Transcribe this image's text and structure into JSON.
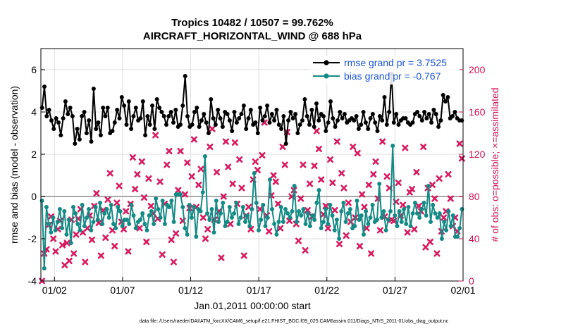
{
  "chart_data": {
    "type": "line",
    "title_line1": "Tropics 10482 / 10507 = 99.762%",
    "title_line2": "AIRCRAFT_HORIZONTAL_WIND @ 688 hPa",
    "xlabel": "Jan.01,2011 00:00:00 start",
    "ylabel_left": "rmse and bias (model - observation)",
    "ylabel_right": "# of obs: o=possible; ×=assimilated",
    "footnote": "data file: /Users/raeder/DAI/ATM_forcXX/CAM6_setup/f.e21.FHIST_BGC.f09_025.CAM6assim.011/Diags_NTrS_2011-01/obs_diag_output.nc",
    "xlim": [
      0,
      31
    ],
    "ylim_left": [
      -4,
      7
    ],
    "ylim_right": [
      0,
      220
    ],
    "x_ticks": [
      1,
      6,
      11,
      16,
      21,
      26,
      31
    ],
    "x_tick_labels": [
      "01/02",
      "01/07",
      "01/12",
      "01/17",
      "01/22",
      "01/27",
      "02/01"
    ],
    "y_ticks_left": [
      -4,
      -2,
      0,
      2,
      4,
      6
    ],
    "y_tick_labels_left": [
      "-4",
      "-2",
      "0",
      "2",
      "4",
      "6"
    ],
    "y_ticks_right": [
      0,
      40,
      80,
      120,
      160,
      200
    ],
    "y_tick_labels_right": [
      "0",
      "40",
      "80",
      "120",
      "160",
      "200"
    ],
    "series": [
      {
        "name": "rmse grand pr = 3.7525",
        "color": "#000000",
        "values": [
          4.2,
          5.2,
          3.8,
          4.1,
          3.6,
          3.2,
          3.7,
          3.5,
          2.9,
          3.7,
          4.5,
          3.9,
          4.2,
          3.8,
          2.5,
          3.2,
          2.7,
          3.8,
          4.0,
          3.0,
          3.6,
          2.6,
          5.1,
          3.2,
          3.5,
          2.9,
          4.2,
          3.8,
          4.2,
          3.0,
          3.1,
          3.5,
          4.1,
          3.7,
          4.7,
          4.3,
          3.4,
          4.5,
          3.2,
          3.8,
          4.2,
          3.6,
          3.7,
          4.5,
          2.9,
          3.8,
          3.4,
          4.3,
          3.2,
          4.6,
          4.2,
          4.0,
          3.8,
          3.4,
          3.8,
          4.0,
          3.5,
          4.1,
          3.3,
          3.4,
          4.3,
          5.7,
          3.8,
          3.3,
          3.4,
          4.0,
          4.2,
          3.3,
          3.6,
          3.9,
          3.5,
          3.0,
          4.6,
          3.7,
          3.4,
          4.1,
          3.7,
          3.3,
          4.0,
          3.9,
          3.6,
          3.1,
          4.0,
          3.5,
          3.7,
          3.9,
          4.3,
          3.2,
          3.7,
          4.1,
          3.4,
          3.5,
          3.0,
          4.2,
          3.6,
          3.8,
          4.3,
          3.5,
          3.9,
          3.6,
          4.1,
          3.4,
          3.2,
          3.8,
          2.5,
          3.6,
          4.0,
          3.7,
          3.9,
          3.0,
          3.4,
          3.6,
          4.6,
          3.8,
          3.4,
          4.1,
          3.3,
          4.4,
          3.6,
          3.9,
          3.8,
          3.1,
          3.5,
          4.5,
          3.7,
          3.3,
          3.6,
          4.0,
          3.7,
          3.9,
          3.5,
          3.6,
          3.7,
          3.6,
          3.8,
          3.2,
          3.4,
          4.0,
          3.5,
          3.2,
          3.7,
          3.9,
          3.5,
          3.1,
          3.8,
          3.6,
          4.7,
          3.4,
          4.0,
          5.8,
          3.5,
          3.9,
          3.4,
          3.6,
          3.7,
          3.7,
          3.5,
          3.4,
          3.5,
          3.9,
          4.0,
          3.8,
          3.6,
          4.0,
          3.7,
          3.9,
          3.5,
          4.1,
          3.9,
          3.3,
          3.6,
          4.8,
          4.5,
          4.7,
          3.7,
          3.8,
          4.0,
          3.7,
          3.6,
          3.6
        ]
      },
      {
        "name": "bias grand pr = -0.767",
        "color": "#138a84",
        "values": [
          -0.2,
          -3.4,
          -0.5,
          -1.3,
          -1.7,
          -1.0,
          -1.6,
          -1.2,
          -0.6,
          -1.5,
          -0.7,
          -1.8,
          -1.1,
          -2.2,
          -0.5,
          -0.8,
          -1.3,
          -1.6,
          -0.4,
          -1.4,
          -1.0,
          -0.6,
          -1.6,
          -1.2,
          -0.5,
          -1.1,
          -0.3,
          -1.3,
          -0.8,
          -0.6,
          -1.0,
          -0.4,
          -1.3,
          -1.5,
          -0.5,
          -0.7,
          -1.4,
          -1.1,
          -1.1,
          -1.3,
          -0.4,
          -0.9,
          -1.5,
          -1.2,
          -1.1,
          -0.8,
          -1.3,
          -1.6,
          -0.9,
          -0.7,
          -1.3,
          -0.1,
          -0.6,
          -1.0,
          -0.2,
          -1.3,
          -0.4,
          -0.5,
          -0.2,
          -1.2,
          0.1,
          0.1,
          0.1,
          -0.5,
          -1.5,
          -1.8,
          -0.4,
          -1.0,
          -0.5,
          -1.9,
          -0.6,
          -0.7,
          0.2,
          1.9,
          -0.8,
          -1.1,
          -0.6,
          -1.7,
          -0.2,
          -1.2,
          -0.8,
          -0.3,
          -1.4,
          -1.2,
          -0.5,
          -1.0,
          -0.8,
          -0.3,
          -1.3,
          -1.0,
          -0.5,
          -1.2,
          -0.9,
          -1.4,
          -0.6,
          1.1,
          -0.3,
          -1.6,
          -1.1,
          -0.4,
          -1.4,
          -1.0,
          0.8,
          -0.6,
          -1.3,
          -1.8,
          -1.2,
          -0.5,
          -1.2,
          -0.6,
          -0.8,
          -1.0,
          -0.7,
          0.5,
          -1.2,
          -0.7,
          -0.9,
          -0.6,
          -1.3,
          -0.8,
          -1.4,
          -0.9,
          -1.1,
          -0.3,
          0.3,
          -1.5,
          -1.2,
          -0.6,
          -1.3,
          -0.4,
          -0.9,
          -1.6,
          -1.1,
          -2.0,
          -0.7,
          -0.3,
          -1.2,
          -0.8,
          -0.6,
          -1.5,
          -1.4,
          -0.2,
          -1.1,
          -0.9,
          -1.8,
          -0.7,
          -1.3,
          -1.0,
          -0.4,
          -1.2,
          -1.1,
          0.6,
          -1.0,
          -0.7,
          -1.6,
          -1.1,
          -0.7,
          2.4,
          -0.9,
          -1.4,
          -0.7,
          -1.2,
          -0.6,
          -1.3,
          -0.5,
          -1.4,
          -0.8,
          -0.3,
          -0.8,
          -1.0,
          -0.6,
          -0.3,
          -0.9,
          0.5,
          -1.2,
          -0.4,
          -0.8,
          -1.0,
          -0.8,
          -2.0,
          -1.2,
          -1.6,
          -0.7,
          -1.4,
          -0.9,
          -1.9,
          -1.9,
          -1.5,
          -0.6
        ]
      }
    ],
    "obs_count_axis": "right",
    "obs_possible_label": "possible",
    "obs_assimilated_label": "assimilated",
    "obs_assimilated": [
      0,
      26,
      30,
      53,
      61,
      40,
      28,
      49,
      57,
      34,
      15,
      36,
      19,
      58,
      26,
      44,
      59,
      68,
      46,
      18,
      50,
      62,
      39,
      71,
      83,
      55,
      24,
      67,
      41,
      77,
      102,
      48,
      33,
      74,
      90,
      56,
      49,
      66,
      28,
      73,
      117,
      87,
      101,
      50,
      113,
      79,
      37,
      97,
      71,
      64,
      138,
      59,
      94,
      25,
      73,
      110,
      123,
      39,
      18,
      45,
      86,
      123,
      57,
      82,
      112,
      69,
      99,
      134,
      70,
      91,
      106,
      60,
      40,
      49,
      127,
      144,
      58,
      103,
      66,
      22,
      80,
      132,
      108,
      54,
      92,
      131,
      73,
      115,
      88,
      24,
      62,
      70,
      49,
      96,
      113,
      105,
      68,
      119,
      150,
      62,
      47,
      81,
      100,
      94,
      73,
      50,
      127,
      110,
      141,
      57,
      80,
      86,
      54,
      38,
      78,
      110,
      29,
      67,
      92,
      61,
      109,
      142,
      125,
      96,
      63,
      71,
      50,
      115,
      93,
      67,
      132,
      35,
      102,
      88,
      43,
      74,
      56,
      127,
      60,
      121,
      33,
      82,
      70,
      50,
      91,
      26,
      101,
      113,
      78,
      48,
      132,
      61,
      99,
      88,
      58,
      57,
      75,
      93,
      62,
      72,
      126,
      46,
      84,
      87,
      49,
      103,
      71,
      66,
      127,
      32,
      88,
      37,
      91,
      78,
      26,
      97,
      47,
      60,
      66,
      101,
      78,
      52,
      60,
      47,
      130,
      116
    ]
  }
}
